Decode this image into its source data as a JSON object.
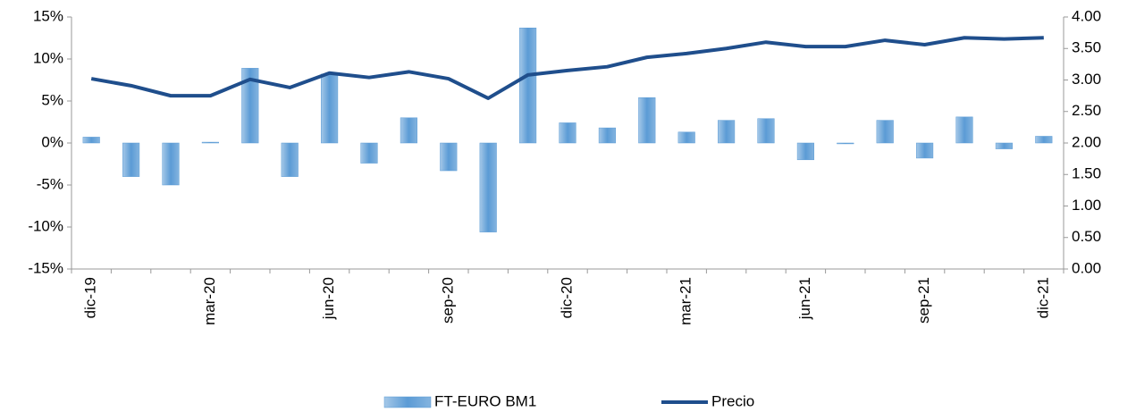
{
  "chart_data": {
    "type": "combo",
    "categories": [
      "dic-19",
      null,
      null,
      "mar-20",
      null,
      null,
      "jun-20",
      null,
      null,
      "sep-20",
      null,
      null,
      "dic-20",
      null,
      null,
      "mar-21",
      null,
      null,
      "jun-21",
      null,
      null,
      "sep-21",
      null,
      null,
      "dic-21"
    ],
    "series": [
      {
        "name": "FT-EURO BM1",
        "type": "bar",
        "color": "#5b9bd5",
        "values": [
          0.7,
          -4.0,
          -5.0,
          0.1,
          8.9,
          -4.0,
          8.2,
          -2.4,
          3.0,
          -3.3,
          -10.6,
          13.7,
          2.4,
          1.8,
          5.4,
          1.3,
          2.7,
          2.9,
          -2.0,
          -0.1,
          2.7,
          -1.8,
          3.1,
          -0.7,
          0.8
        ]
      },
      {
        "name": "Precio",
        "type": "line",
        "axis": "y2",
        "color": "#1f4e8c",
        "values": [
          3.02,
          2.91,
          2.75,
          2.75,
          3.01,
          2.88,
          3.11,
          3.04,
          3.13,
          3.02,
          2.71,
          3.08,
          3.15,
          3.21,
          3.36,
          3.42,
          3.5,
          3.6,
          3.53,
          3.53,
          3.63,
          3.56,
          3.67,
          3.65,
          3.67
        ]
      }
    ],
    "ylim": [
      -15,
      15
    ],
    "yticks": [
      {
        "value": -15,
        "label": "-15%"
      },
      {
        "value": -10,
        "label": "-10%"
      },
      {
        "value": -5,
        "label": "-5%"
      },
      {
        "value": 0,
        "label": "0%"
      },
      {
        "value": 5,
        "label": "5%"
      },
      {
        "value": 10,
        "label": "10%"
      },
      {
        "value": 15,
        "label": "15%"
      }
    ],
    "y2lim": [
      0,
      4
    ],
    "y2ticks": [
      {
        "value": 0,
        "label": "0.00"
      },
      {
        "value": 0.5,
        "label": "0.50"
      },
      {
        "value": 1,
        "label": "1.00"
      },
      {
        "value": 1.5,
        "label": "1.50"
      },
      {
        "value": 2,
        "label": "2.00"
      },
      {
        "value": 2.5,
        "label": "2.50"
      },
      {
        "value": 3,
        "label": "3.00"
      },
      {
        "value": 3.5,
        "label": "3.50"
      },
      {
        "value": 4,
        "label": "4.00"
      }
    ],
    "grid": false,
    "legend": "bottom"
  }
}
